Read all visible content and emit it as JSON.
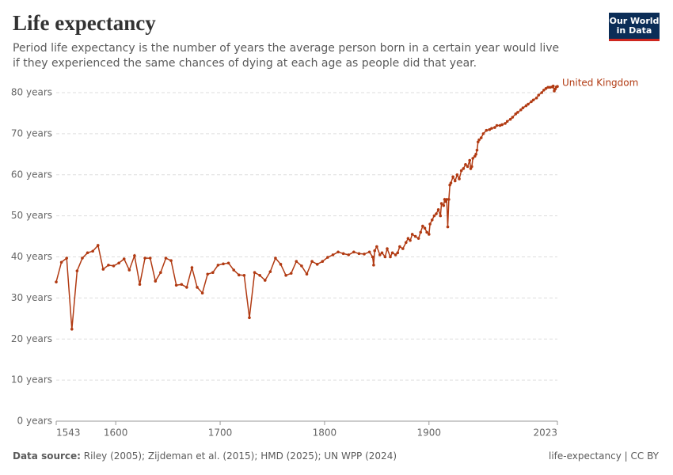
{
  "chart_data": {
    "type": "line",
    "title": "Life expectancy",
    "subtitle": "Period life expectancy is the number of years the average person born in a certain year would live if they experienced the same chances of dying at each age as people did that year.",
    "logo": [
      "Our World",
      "in Data"
    ],
    "source_label": "Data source:",
    "source": "Riley (2005); Zijdeman et al. (2015); HMD (2025); UN WPP (2024)",
    "footer_right": "life-expectancy | CC BY",
    "x": [
      1543,
      1548,
      1553,
      1558,
      1563,
      1568,
      1573,
      1578,
      1583,
      1588,
      1593,
      1598,
      1603,
      1608,
      1613,
      1618,
      1623,
      1628,
      1633,
      1638,
      1643,
      1648,
      1653,
      1658,
      1663,
      1668,
      1673,
      1678,
      1683,
      1688,
      1693,
      1698,
      1703,
      1708,
      1713,
      1718,
      1723,
      1728,
      1733,
      1738,
      1743,
      1748,
      1753,
      1758,
      1763,
      1768,
      1773,
      1778,
      1783,
      1788,
      1793,
      1798,
      1803,
      1808,
      1813,
      1818,
      1823,
      1828,
      1833,
      1838,
      1843,
      1846,
      1847,
      1848,
      1850,
      1853,
      1855,
      1858,
      1860,
      1863,
      1865,
      1868,
      1870,
      1872,
      1875,
      1878,
      1880,
      1882,
      1884,
      1887,
      1890,
      1892,
      1894,
      1896,
      1898,
      1900,
      1901,
      1903,
      1905,
      1907,
      1909,
      1911,
      1912,
      1914,
      1915,
      1916,
      1917,
      1918,
      1919,
      1920,
      1921,
      1923,
      1925,
      1927,
      1929,
      1931,
      1933,
      1935,
      1937,
      1939,
      1940,
      1941,
      1942,
      1944,
      1945,
      1946,
      1947,
      1948,
      1950,
      1952,
      1955,
      1958,
      1960,
      1963,
      1965,
      1968,
      1970,
      1973,
      1975,
      1978,
      1980,
      1983,
      1985,
      1988,
      1990,
      1993,
      1995,
      1998,
      2000,
      2003,
      2005,
      2008,
      2010,
      2012,
      2014,
      2016,
      2018,
      2019,
      2020,
      2021,
      2022,
      2023
    ],
    "series": [
      {
        "name": "United Kingdom",
        "color": "#b13a12",
        "values": [
          33.9,
          38.7,
          39.7,
          22.4,
          36.6,
          39.7,
          41.0,
          41.4,
          42.8,
          37.0,
          38.0,
          37.8,
          38.5,
          39.5,
          36.8,
          40.3,
          33.3,
          39.7,
          39.7,
          34.1,
          36.2,
          39.7,
          39.1,
          33.1,
          33.3,
          32.6,
          37.4,
          32.6,
          31.2,
          35.8,
          36.2,
          38.0,
          38.3,
          38.5,
          36.8,
          35.6,
          35.5,
          25.2,
          36.2,
          35.5,
          34.3,
          36.4,
          39.7,
          38.2,
          35.5,
          36.0,
          38.9,
          37.8,
          35.8,
          38.9,
          38.2,
          38.9,
          39.9,
          40.5,
          41.2,
          40.8,
          40.5,
          41.2,
          40.8,
          40.7,
          41.2,
          40.0,
          38.0,
          41.5,
          42.5,
          40.5,
          41.0,
          40.0,
          42.0,
          40.0,
          41.0,
          40.5,
          41.0,
          42.5,
          42.0,
          43.5,
          44.5,
          44.0,
          45.5,
          45.0,
          44.5,
          46.0,
          47.5,
          47.0,
          46.0,
          45.5,
          48.0,
          49.0,
          50.0,
          50.5,
          51.5,
          50.0,
          53.0,
          52.5,
          54.0,
          53.5,
          54.0,
          47.3,
          54.0,
          57.5,
          58.0,
          59.5,
          58.5,
          60.0,
          59.0,
          61.0,
          61.5,
          62.5,
          62.0,
          63.5,
          61.5,
          62.0,
          64.0,
          64.5,
          65.0,
          66.0,
          68.0,
          68.5,
          69.0,
          70.0,
          70.8,
          71.0,
          71.3,
          71.5,
          72.0,
          72.0,
          72.2,
          72.5,
          73.0,
          73.5,
          74.0,
          74.8,
          75.2,
          75.8,
          76.3,
          76.8,
          77.2,
          77.8,
          78.2,
          78.7,
          79.4,
          80.0,
          80.6,
          81.0,
          81.3,
          81.3,
          81.4,
          81.6,
          80.4,
          80.9,
          81.4,
          81.5
        ]
      }
    ],
    "xlim": [
      1543,
      2023
    ],
    "xticks": [
      1543,
      1600,
      1700,
      1800,
      1900,
      2023
    ],
    "ylim": [
      0,
      80
    ],
    "yticks": [
      {
        "value": 0,
        "label": "0 years"
      },
      {
        "value": 10,
        "label": "10 years"
      },
      {
        "value": 20,
        "label": "20 years"
      },
      {
        "value": 30,
        "label": "30 years"
      },
      {
        "value": 40,
        "label": "40 years"
      },
      {
        "value": 50,
        "label": "50 years"
      },
      {
        "value": 60,
        "label": "60 years"
      },
      {
        "value": 70,
        "label": "70 years"
      },
      {
        "value": 80,
        "label": "80 years"
      }
    ],
    "grid": true
  }
}
